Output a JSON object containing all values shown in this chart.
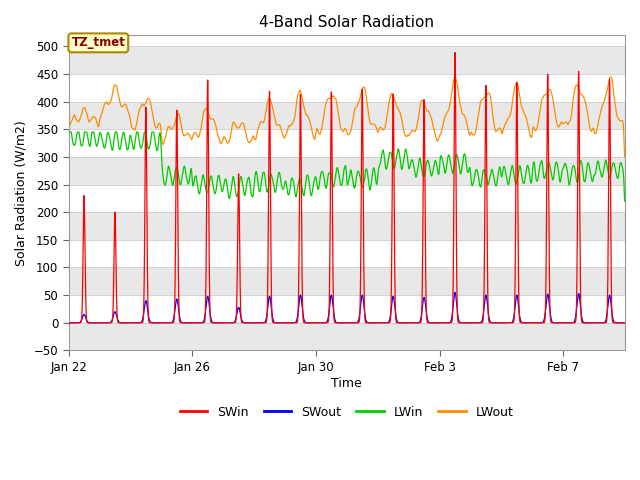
{
  "title": "4-Band Solar Radiation",
  "xlabel": "Time",
  "ylabel": "Solar Radiation (W/m2)",
  "ylim": [
    -50,
    520
  ],
  "yticks": [
    -50,
    0,
    50,
    100,
    150,
    200,
    250,
    300,
    350,
    400,
    450,
    500
  ],
  "plot_bg": "#ffffff",
  "band_color": "#e8e8e8",
  "legend_entries": [
    "SWin",
    "SWout",
    "LWin",
    "LWout"
  ],
  "legend_colors": [
    "#ff0000",
    "#0000ff",
    "#00cc00",
    "#ff8c00"
  ],
  "annotation_text": "TZ_tmet",
  "annotation_color": "#880000",
  "annotation_bg": "#ffffcc",
  "annotation_border": "#aa8800",
  "xtick_labels": [
    "Jan 22",
    "Jan 26",
    "Jan 30",
    "Feb 3",
    "Feb 7"
  ],
  "xtick_positions": [
    0,
    4,
    8,
    12,
    16
  ],
  "total_days": 18,
  "sw_peaks": [
    230,
    200,
    390,
    385,
    440,
    270,
    420,
    415,
    420,
    425,
    415,
    405,
    490,
    430,
    435,
    450,
    455,
    440
  ],
  "sw_out_peaks": [
    15,
    20,
    40,
    43,
    48,
    28,
    48,
    50,
    50,
    50,
    48,
    46,
    55,
    50,
    50,
    52,
    53,
    50
  ],
  "lwin_base": [
    335,
    330,
    330,
    265,
    250,
    245,
    255,
    248,
    262,
    260,
    295,
    280,
    288,
    263,
    268,
    275,
    272,
    278
  ],
  "lwout_base": [
    360,
    380,
    350,
    330,
    330,
    328,
    338,
    338,
    342,
    342,
    338,
    332,
    345,
    340,
    342,
    350,
    350,
    348
  ],
  "lwout_peak_add": [
    20,
    40,
    55,
    40,
    55,
    35,
    60,
    75,
    75,
    80,
    75,
    70,
    90,
    80,
    85,
    75,
    80,
    90
  ]
}
